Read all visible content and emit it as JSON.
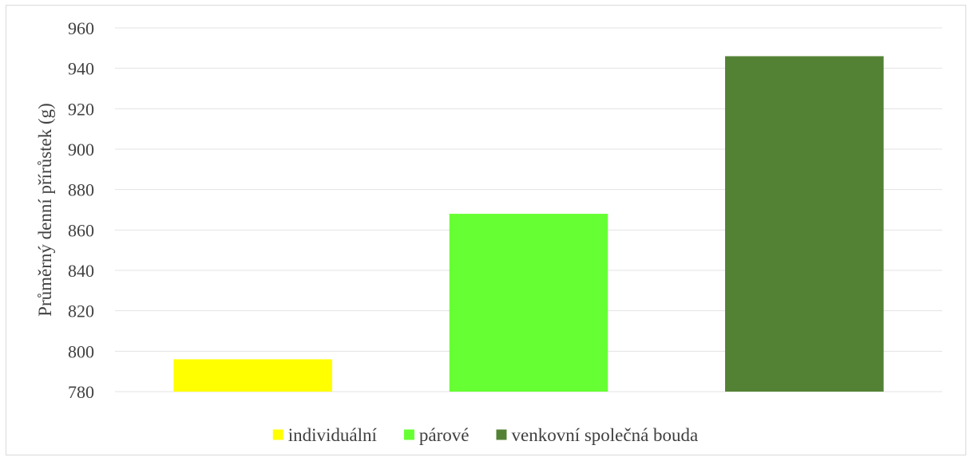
{
  "chart_data": {
    "type": "bar",
    "ylabel": "Průměrný denní přírůstek (g)",
    "ylim": [
      780,
      960
    ],
    "yticks": [
      780,
      800,
      820,
      840,
      860,
      880,
      900,
      920,
      940,
      960
    ],
    "grid": true,
    "legend_position": "bottom",
    "series": [
      {
        "name": "individuální",
        "value": 796,
        "color": "#ffff00"
      },
      {
        "name": "párové",
        "value": 868,
        "color": "#66ff33"
      },
      {
        "name": "venkovní společná bouda",
        "value": 946,
        "color": "#548235"
      }
    ]
  }
}
